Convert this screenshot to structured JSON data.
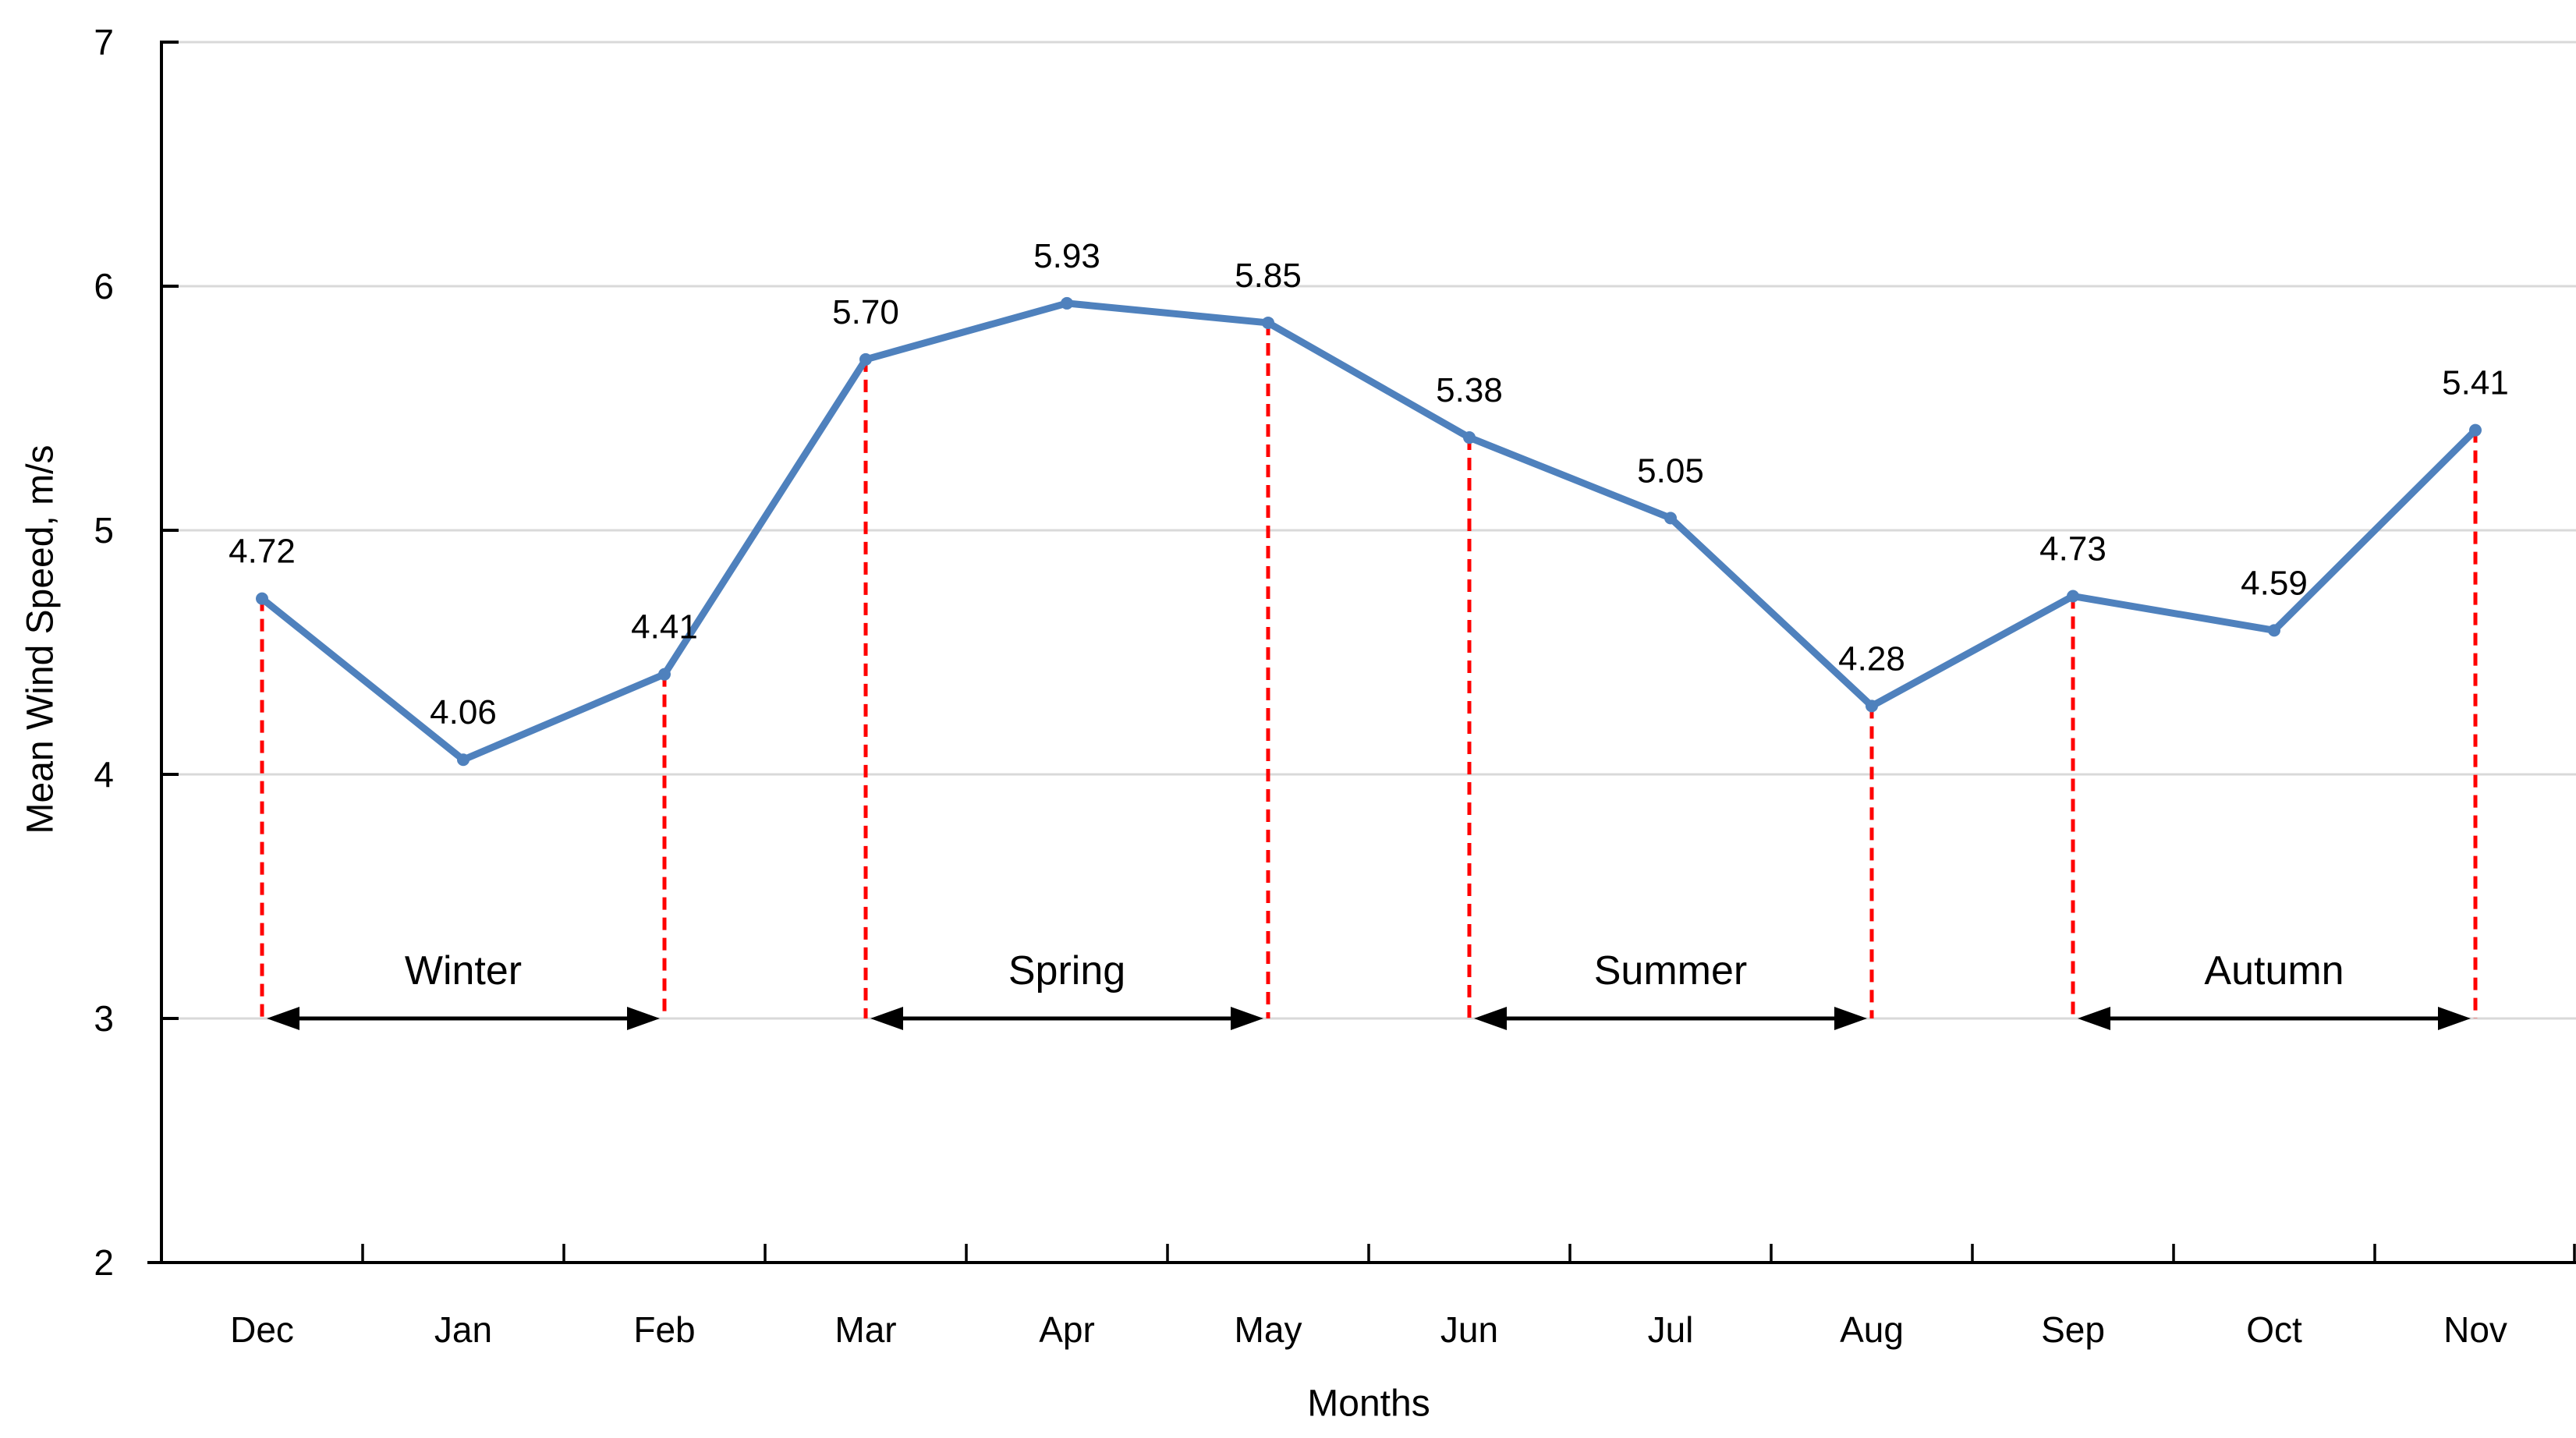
{
  "chart_data": {
    "type": "line",
    "xlabel": "Months",
    "ylabel": "Mean Wind Speed, m/s",
    "categories": [
      "Dec",
      "Jan",
      "Feb",
      "Mar",
      "Apr",
      "May",
      "Jun",
      "Jul",
      "Aug",
      "Sep",
      "Oct",
      "Nov"
    ],
    "values": [
      4.72,
      4.06,
      4.41,
      5.7,
      5.93,
      5.85,
      5.38,
      5.05,
      4.28,
      4.73,
      4.59,
      5.41
    ],
    "data_labels": [
      "4.72",
      "4.06",
      "4.41",
      "5.70",
      "5.93",
      "5.85",
      "5.38",
      "5.05",
      "4.28",
      "4.73",
      "4.59",
      "5.41"
    ],
    "ylim": [
      2,
      7
    ],
    "yticks": [
      2,
      3,
      4,
      5,
      6,
      7
    ],
    "ytick_labels": [
      "2",
      "3",
      "4",
      "5",
      "6",
      "7"
    ],
    "grid": "horizontal",
    "legend_position": "none",
    "marker": "circle",
    "seasons": [
      {
        "label": "Winter",
        "from_index": 0,
        "to_index": 2
      },
      {
        "label": "Spring",
        "from_index": 3,
        "to_index": 5
      },
      {
        "label": "Summer",
        "from_index": 6,
        "to_index": 8
      },
      {
        "label": "Autumn",
        "from_index": 9,
        "to_index": 11
      }
    ],
    "season_arrow_y": 3,
    "colors": {
      "line": "#4F81BD",
      "marker": "#4F81BD",
      "season_divider": "#FF0000",
      "arrow": "#000000",
      "gridline": "#D9D9D9",
      "axis": "#000000",
      "text": "#000000"
    }
  }
}
